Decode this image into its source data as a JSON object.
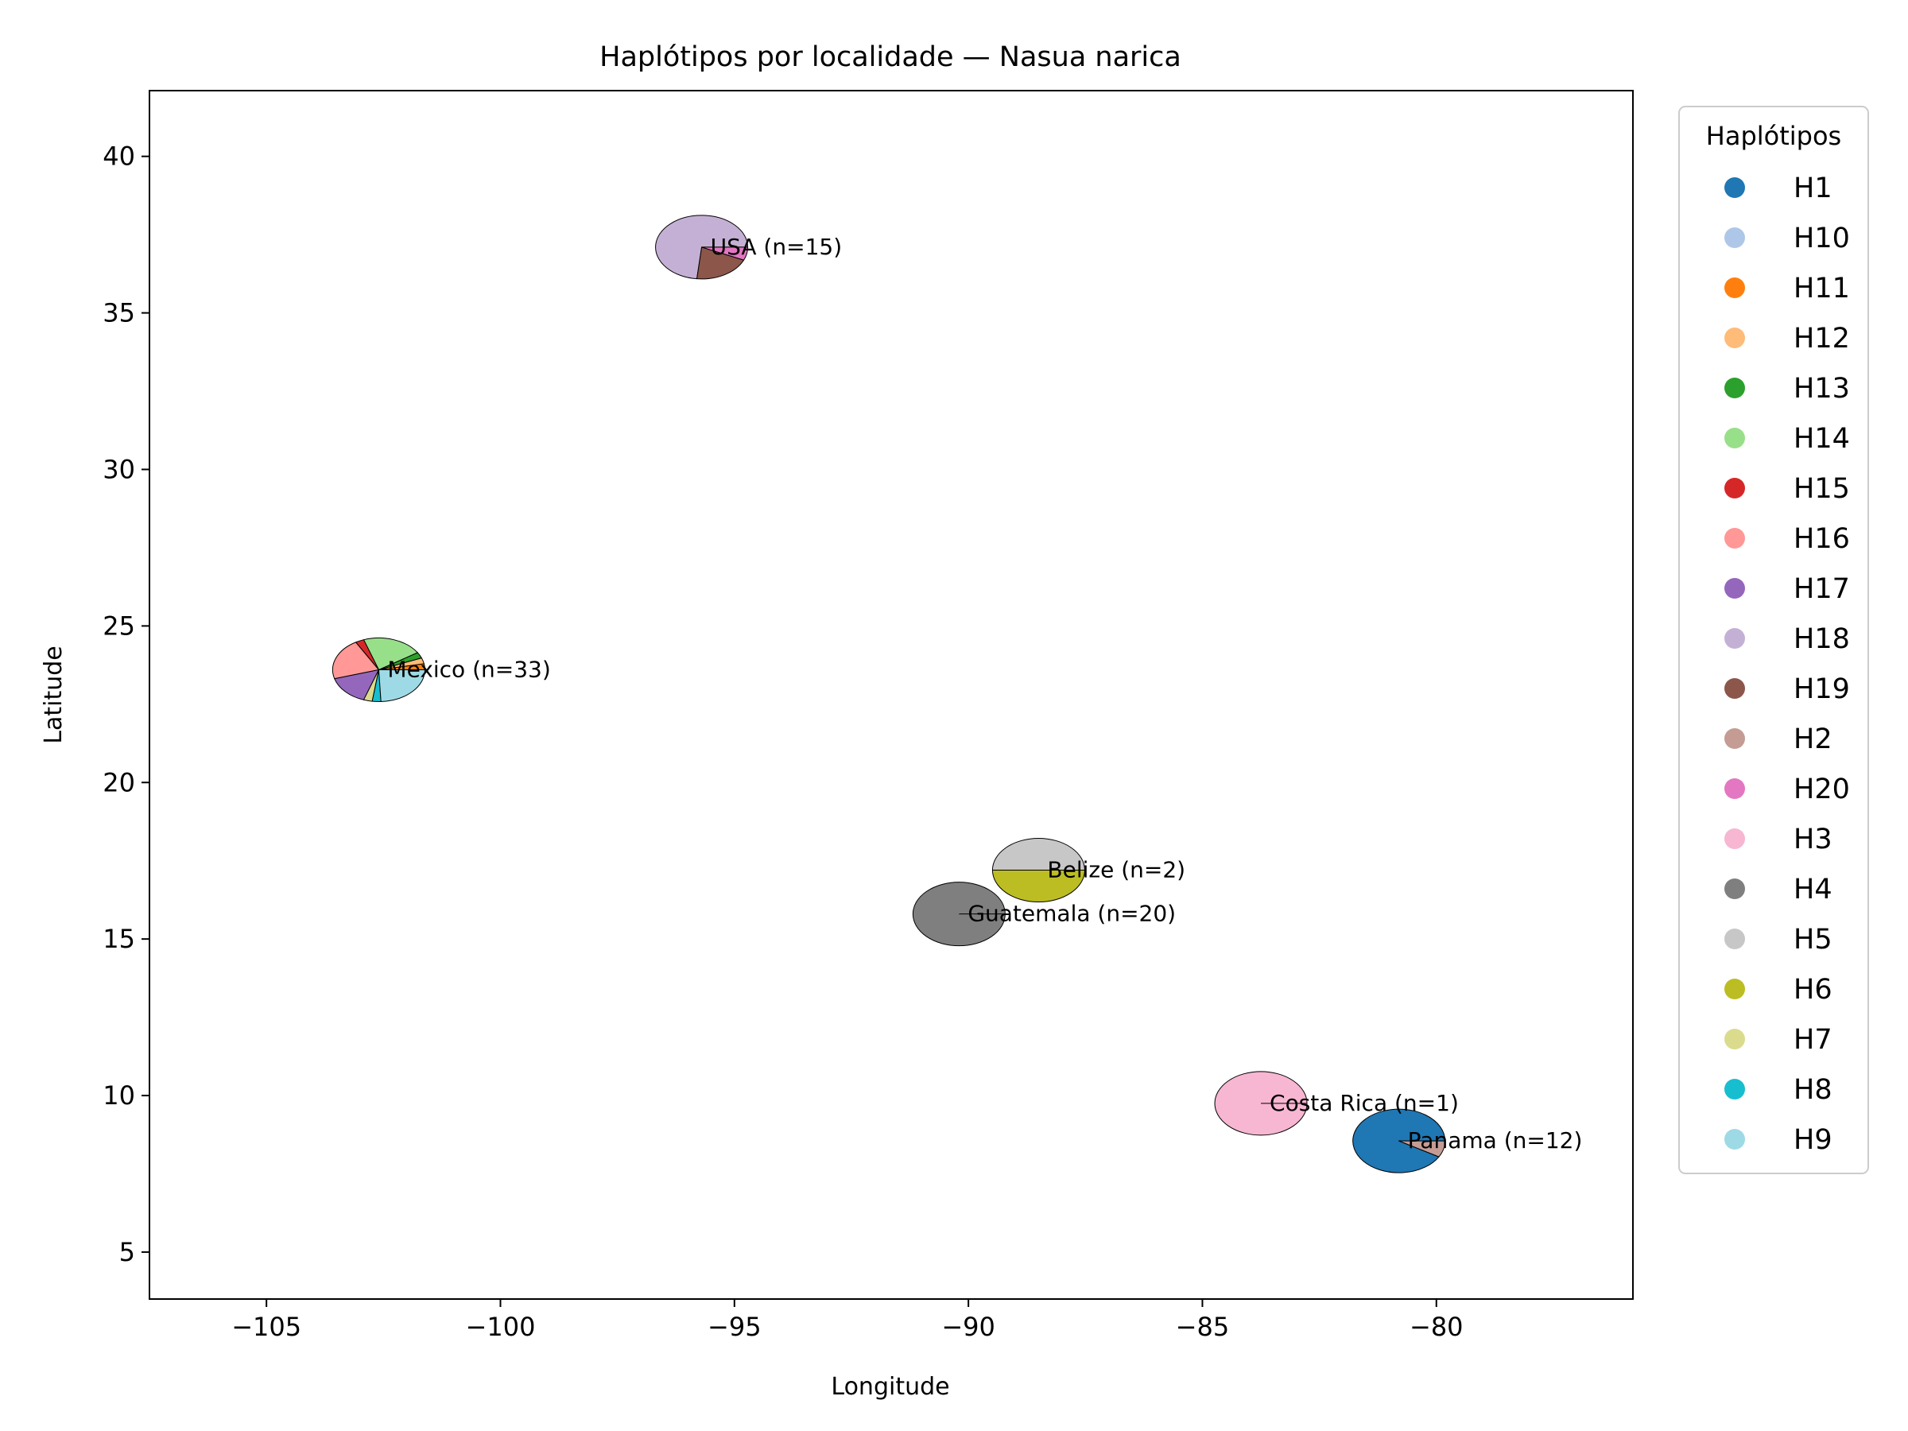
{
  "chart_data": {
    "type": "scatter",
    "subtype": "pie-markers-on-map",
    "title": "Haplótipos por localidade — Nasua narica",
    "xlabel": "Longitude",
    "ylabel": "Latitude",
    "xlim": [
      -107.5,
      -75.8
    ],
    "ylim": [
      3.5,
      42.1
    ],
    "xticks": [
      -105,
      -100,
      -95,
      -90,
      -85,
      -80
    ],
    "yticks": [
      5,
      10,
      15,
      20,
      25,
      30,
      35,
      40
    ],
    "xtick_labels": [
      "−105",
      "−100",
      "−95",
      "−90",
      "−85",
      "−80"
    ],
    "ytick_labels": [
      "5",
      "10",
      "15",
      "20",
      "25",
      "30",
      "35",
      "40"
    ],
    "grid": false,
    "legend": {
      "title": "Haplótipos",
      "placement": "outside-right",
      "entries": [
        "H1",
        "H10",
        "H11",
        "H12",
        "H13",
        "H14",
        "H15",
        "H16",
        "H17",
        "H18",
        "H19",
        "H2",
        "H20",
        "H3",
        "H4",
        "H5",
        "H6",
        "H7",
        "H8",
        "H9"
      ]
    },
    "colors": {
      "H1": "#1f77b4",
      "H10": "#aec7e8",
      "H11": "#ff7f0e",
      "H12": "#ffbb78",
      "H13": "#2ca02c",
      "H14": "#98df8a",
      "H15": "#d62728",
      "H16": "#ff9896",
      "H17": "#9467bd",
      "H18": "#c5b0d5",
      "H19": "#8c564b",
      "H2": "#c49c94",
      "H20": "#e377c2",
      "H3": "#f7b6d2",
      "H4": "#7f7f7f",
      "H5": "#c7c7c7",
      "H6": "#bcbd22",
      "H7": "#dbdb8d",
      "H8": "#17becf",
      "H9": "#9edae5"
    },
    "localities": [
      {
        "name": "USA",
        "label": "USA (n=15)",
        "n": 15,
        "lon": -95.7,
        "lat": 37.1,
        "slices": [
          {
            "hap": "H18",
            "count": 11
          },
          {
            "hap": "H19",
            "count": 3
          },
          {
            "hap": "H20",
            "count": 1
          }
        ]
      },
      {
        "name": "Mexico",
        "label": "Mexico (n=33)",
        "n": 33,
        "lon": -102.6,
        "lat": 23.6,
        "slices": [
          {
            "hap": "H11",
            "count": 1
          },
          {
            "hap": "H12",
            "count": 1
          },
          {
            "hap": "H13",
            "count": 1
          },
          {
            "hap": "H14",
            "count": 7
          },
          {
            "hap": "H15",
            "count": 1
          },
          {
            "hap": "H16",
            "count": 7
          },
          {
            "hap": "H17",
            "count": 5
          },
          {
            "hap": "H7",
            "count": 1
          },
          {
            "hap": "H8",
            "count": 1
          },
          {
            "hap": "H9",
            "count": 8
          }
        ]
      },
      {
        "name": "Belize",
        "label": "Belize (n=2)",
        "n": 2,
        "lon": -88.5,
        "lat": 17.2,
        "slices": [
          {
            "hap": "H5",
            "count": 1
          },
          {
            "hap": "H6",
            "count": 1
          }
        ]
      },
      {
        "name": "Guatemala",
        "label": "Guatemala (n=20)",
        "n": 20,
        "lon": -90.2,
        "lat": 15.8,
        "slices": [
          {
            "hap": "H4",
            "count": 20
          }
        ]
      },
      {
        "name": "Costa Rica",
        "label": "Costa Rica (n=1)",
        "n": 1,
        "lon": -83.75,
        "lat": 9.75,
        "slices": [
          {
            "hap": "H3",
            "count": 1
          }
        ]
      },
      {
        "name": "Panama",
        "label": "Panama (n=12)",
        "n": 12,
        "lon": -80.8,
        "lat": 8.55,
        "slices": [
          {
            "hap": "H1",
            "count": 11
          },
          {
            "hap": "H2",
            "count": 1
          }
        ]
      }
    ]
  }
}
